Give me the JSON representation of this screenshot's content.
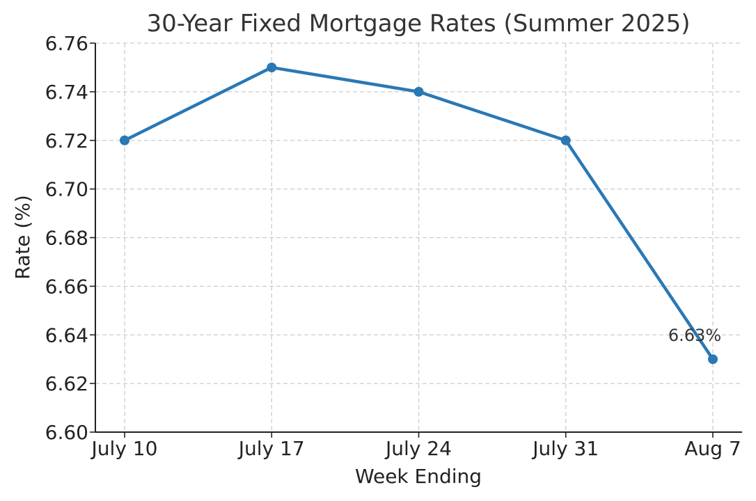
{
  "chart_data": {
    "type": "line",
    "title": "30-Year Fixed Mortgage Rates (Summer 2025)",
    "xlabel": "Week Ending",
    "ylabel": "Rate (%)",
    "categories": [
      "July 10",
      "July 17",
      "July 24",
      "July 31",
      "Aug 7"
    ],
    "series": [
      {
        "values": [
          6.72,
          6.75,
          6.74,
          6.72,
          6.63
        ],
        "color": "#2a78b4",
        "marker": "circle"
      }
    ],
    "ylim": [
      6.6,
      6.76
    ],
    "yticks": [
      6.6,
      6.62,
      6.64,
      6.66,
      6.68,
      6.7,
      6.72,
      6.74,
      6.76
    ],
    "ytick_labels": [
      "6.60",
      "6.62",
      "6.64",
      "6.66",
      "6.68",
      "6.70",
      "6.72",
      "6.74",
      "6.76"
    ],
    "grid": true,
    "annotations": [
      {
        "category": "Aug 7",
        "value": 6.63,
        "text": "6.63%"
      }
    ]
  }
}
